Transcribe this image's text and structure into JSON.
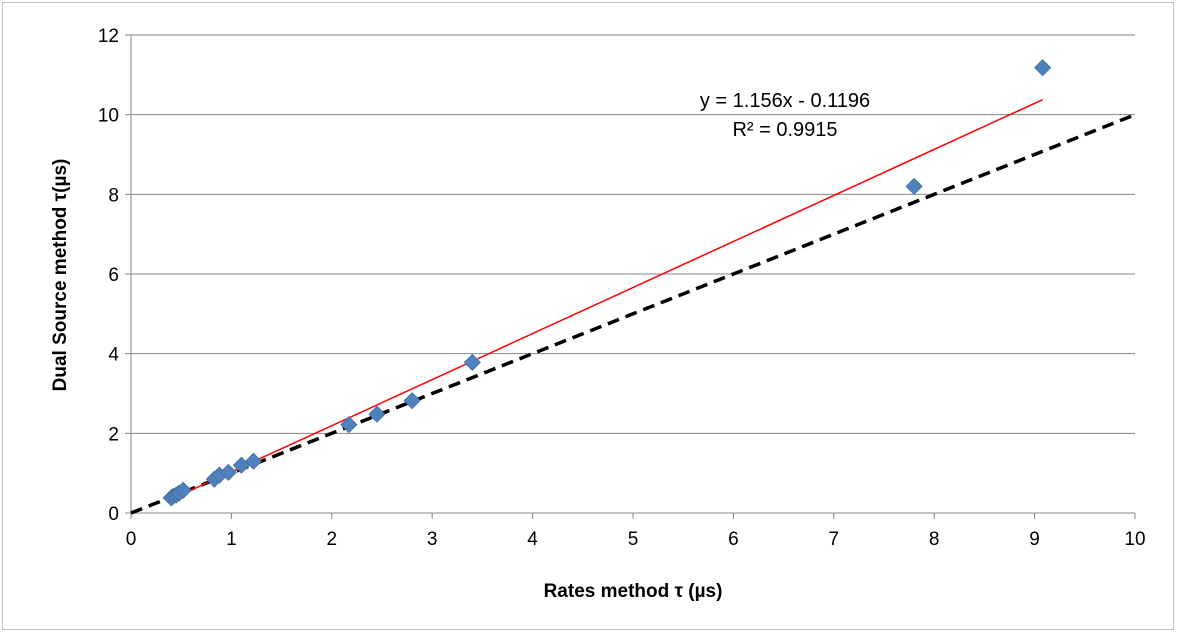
{
  "chart_data": {
    "type": "scatter",
    "xlabel": "Rates method τ (µs)",
    "ylabel": "Dual Source method τ(µs)",
    "xlim": [
      0,
      10
    ],
    "ylim": [
      0,
      12
    ],
    "x_ticks": [
      "0",
      "1",
      "2",
      "3",
      "4",
      "5",
      "6",
      "7",
      "8",
      "9",
      "10"
    ],
    "y_ticks": [
      "0",
      "2",
      "4",
      "6",
      "8",
      "10",
      "12"
    ],
    "grid": "horizontal major gridlines",
    "legend": "none",
    "series": [
      {
        "marker": "diamond",
        "color": "#4f81bd",
        "points": [
          {
            "x": 0.4,
            "y": 0.38
          },
          {
            "x": 0.42,
            "y": 0.42
          },
          {
            "x": 0.45,
            "y": 0.45
          },
          {
            "x": 0.48,
            "y": 0.5
          },
          {
            "x": 0.52,
            "y": 0.57
          },
          {
            "x": 0.83,
            "y": 0.85
          },
          {
            "x": 0.88,
            "y": 0.95
          },
          {
            "x": 0.97,
            "y": 1.02
          },
          {
            "x": 1.1,
            "y": 1.2
          },
          {
            "x": 1.22,
            "y": 1.3
          },
          {
            "x": 2.17,
            "y": 2.22
          },
          {
            "x": 2.45,
            "y": 2.48
          },
          {
            "x": 2.8,
            "y": 2.82
          },
          {
            "x": 3.4,
            "y": 3.78
          },
          {
            "x": 7.8,
            "y": 8.2
          },
          {
            "x": 9.08,
            "y": 11.18
          }
        ]
      }
    ],
    "trendline": {
      "slope": 1.156,
      "intercept": -0.1196,
      "x_range": [
        0.4,
        9.08
      ],
      "color": "#ff0000",
      "equation_label": "y = 1.156x - 0.1196",
      "r2_label": "R² = 0.9915"
    },
    "reference_line": {
      "from": [
        0,
        0
      ],
      "to": [
        10,
        10
      ],
      "style": "dashed",
      "color": "#000000"
    }
  }
}
